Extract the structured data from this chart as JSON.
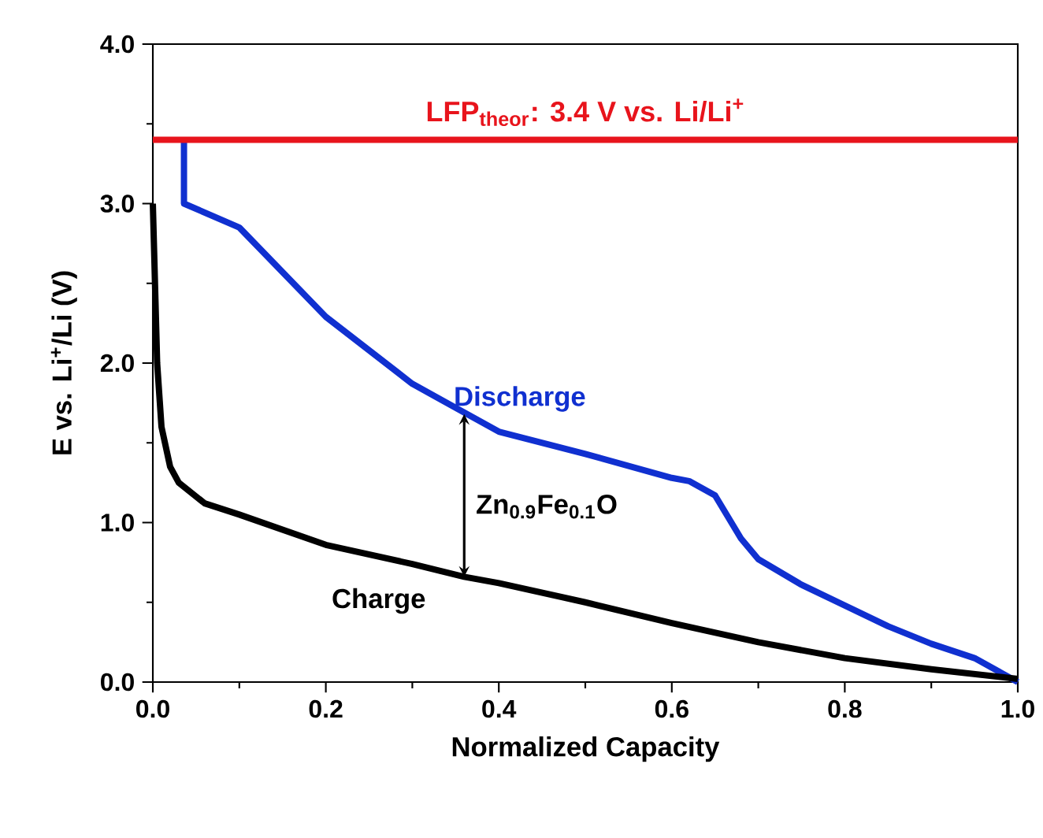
{
  "chart_data": {
    "type": "line",
    "xlabel": "Normalized Capacity",
    "ylabel": "E vs. Li$^{+}$/Li (V)",
    "xlim": [
      0,
      1
    ],
    "ylim": [
      0,
      4
    ],
    "xticks": [
      {
        "value": 0,
        "label": "0.0"
      },
      {
        "value": 0.2,
        "label": "0.2"
      },
      {
        "value": 0.4,
        "label": "0.4"
      },
      {
        "value": 0.6,
        "label": "0.6"
      },
      {
        "value": 0.8,
        "label": "0.8"
      },
      {
        "value": 1,
        "label": "1.0"
      }
    ],
    "yticks": [
      {
        "value": 0,
        "label": "0.0"
      },
      {
        "value": 1,
        "label": "1.0"
      },
      {
        "value": 2,
        "label": "2.0"
      },
      {
        "value": 3,
        "label": "3.0"
      },
      {
        "value": 4,
        "label": "4.0"
      }
    ],
    "series": [
      {
        "name": "Discharge",
        "color": "#1030d0",
        "x": [
          0.036,
          0.036,
          0.1,
          0.2,
          0.3,
          0.36,
          0.4,
          0.5,
          0.6,
          0.62,
          0.65,
          0.68,
          0.7,
          0.75,
          0.8,
          0.85,
          0.9,
          0.95,
          1.0
        ],
        "values": [
          3.4,
          3.0,
          2.85,
          2.29,
          1.87,
          1.69,
          1.57,
          1.43,
          1.28,
          1.26,
          1.17,
          0.9,
          0.77,
          0.61,
          0.48,
          0.35,
          0.24,
          0.15,
          0.0
        ]
      },
      {
        "name": "Charge",
        "color": "#000000",
        "x": [
          0,
          0.003,
          0.005,
          0.01,
          0.02,
          0.03,
          0.06,
          0.1,
          0.2,
          0.3,
          0.36,
          0.4,
          0.5,
          0.6,
          0.7,
          0.8,
          0.9,
          0.95,
          1.0
        ],
        "values": [
          3.0,
          2.4,
          2.0,
          1.6,
          1.35,
          1.25,
          1.12,
          1.05,
          0.86,
          0.74,
          0.66,
          0.62,
          0.5,
          0.37,
          0.25,
          0.15,
          0.08,
          0.05,
          0.02
        ]
      }
    ],
    "ref_lines": [
      {
        "axis": "y",
        "value": 3.4,
        "label": "LFP$_{theor}$: 3.4 V vs. Li/Li$^{+}$",
        "color": "#e8141c"
      }
    ],
    "annotations": [
      "Zn$_{0.9}$Fe$_{0.1}$O"
    ],
    "legend": false,
    "grid": false,
    "marker": "none",
    "line_style": "solid"
  }
}
